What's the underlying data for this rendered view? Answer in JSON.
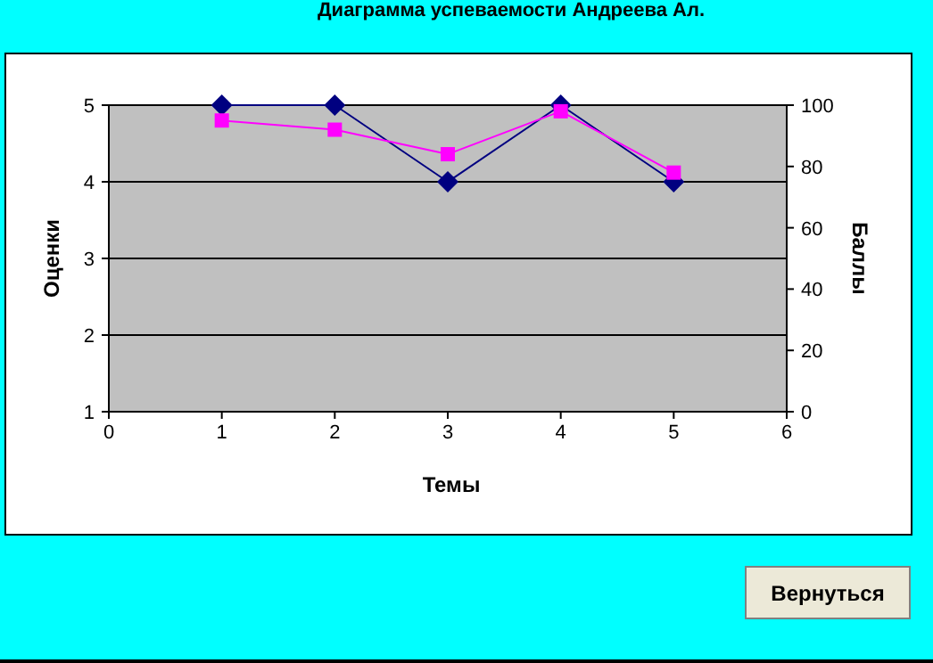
{
  "chart_data": {
    "type": "line",
    "title": "Диаграмма успеваемости Андреева Ал.",
    "xlabel": "Темы",
    "ylabel": "Оценки",
    "y2label": "Баллы",
    "x": [
      1,
      2,
      3,
      4,
      5
    ],
    "xlim": [
      0,
      6
    ],
    "xticks": [
      0,
      1,
      2,
      3,
      4,
      5,
      6
    ],
    "ylim": [
      1,
      5
    ],
    "yticks": [
      1,
      2,
      3,
      4,
      5
    ],
    "y2lim": [
      0,
      100
    ],
    "y2ticks": [
      0,
      20,
      40,
      60,
      80,
      100
    ],
    "grid": "y",
    "annotations": [
      "Вернуться"
    ],
    "series": [
      {
        "color": "#000080",
        "values": [
          5,
          5,
          4,
          5,
          4
        ],
        "marker": "diamond"
      },
      {
        "color": "#ff00ff",
        "values": [
          95,
          92,
          84,
          98,
          78
        ],
        "marker": "square",
        "axis": "y2"
      }
    ]
  }
}
